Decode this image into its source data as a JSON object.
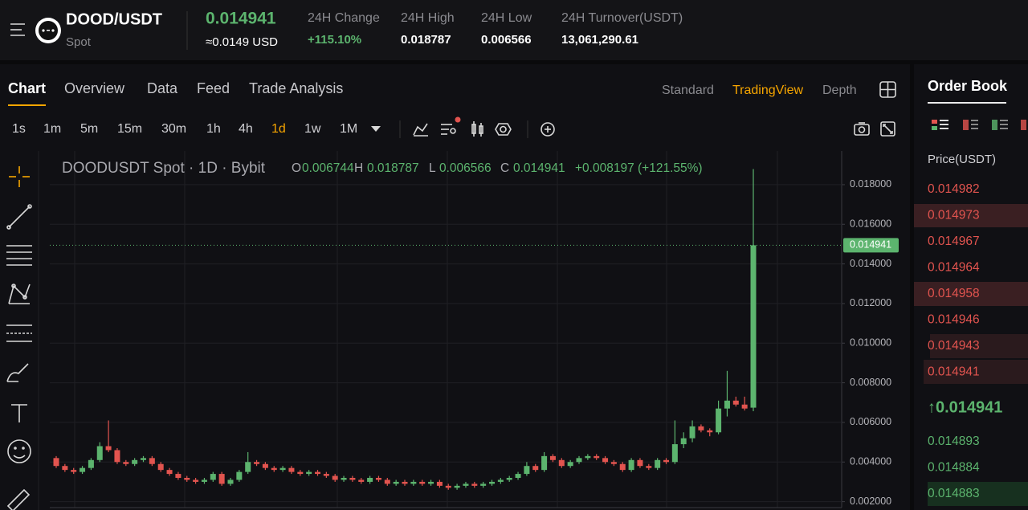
{
  "header": {
    "pair": "DOOD/USDT",
    "market": "Spot",
    "price": "0.014941",
    "price_usd": "≈0.0149 USD",
    "stats": [
      {
        "label": "24H Change",
        "value": "+115.10%"
      },
      {
        "label": "24H High",
        "value": "0.018787"
      },
      {
        "label": "24H Low",
        "value": "0.006566"
      },
      {
        "label": "24H Turnover(USDT)",
        "value": "13,061,290.61"
      }
    ]
  },
  "tabs": [
    "Chart",
    "Overview",
    "Data",
    "Feed",
    "Trade Analysis"
  ],
  "views": [
    "Standard",
    "TradingView",
    "Depth"
  ],
  "intervals": [
    "1s",
    "1m",
    "5m",
    "15m",
    "30m",
    "1h",
    "4h",
    "1d",
    "1w",
    "1M"
  ],
  "chart_data": {
    "type": "candlestick",
    "title": "DOODUSDT Spot · 1D · Bybit",
    "ohlc_labels": [
      "O",
      "H",
      "L",
      "C"
    ],
    "change": "+0.008197 (+121.55%)",
    "open": [
      0.0042,
      0.0038,
      0.0036,
      0.0035,
      0.0037,
      0.0041,
      0.0048,
      0.0046,
      0.004,
      0.0039,
      0.0041,
      0.0042,
      0.0039,
      0.0036,
      0.0034,
      0.0032,
      0.0031,
      0.003,
      0.0031,
      0.0034,
      0.0029,
      0.0031,
      0.0035,
      0.004,
      0.0039,
      0.0037,
      0.0036,
      0.0037,
      0.0035,
      0.0034,
      0.0035,
      0.0034,
      0.0033,
      0.0031,
      0.0032,
      0.0031,
      0.003,
      0.0032,
      0.0031,
      0.0029,
      0.003,
      0.0029,
      0.003,
      0.0029,
      0.003,
      0.0028,
      0.0027,
      0.0028,
      0.0029,
      0.0028,
      0.0029,
      0.003,
      0.0031,
      0.0032,
      0.0034,
      0.0038,
      0.0036,
      0.0043,
      0.0041,
      0.0038,
      0.004,
      0.0042,
      0.0043,
      0.0042,
      0.004,
      0.0039,
      0.0036,
      0.0041,
      0.0038,
      0.0037,
      0.0041,
      0.004,
      0.0049,
      0.0052,
      0.0058,
      0.0056,
      0.0055,
      0.0067,
      0.0071,
      0.0069,
      0.006744
    ],
    "high": [
      0.0043,
      0.0039,
      0.0037,
      0.0038,
      0.0042,
      0.005,
      0.0061,
      0.0047,
      0.0041,
      0.0042,
      0.0043,
      0.0043,
      0.004,
      0.0037,
      0.0035,
      0.0033,
      0.0032,
      0.0032,
      0.0035,
      0.0035,
      0.0032,
      0.0036,
      0.0045,
      0.0041,
      0.004,
      0.0038,
      0.0038,
      0.0038,
      0.0036,
      0.0036,
      0.0036,
      0.0035,
      0.0034,
      0.0033,
      0.0033,
      0.0032,
      0.0033,
      0.0033,
      0.0032,
      0.0031,
      0.0031,
      0.0031,
      0.0031,
      0.0031,
      0.0031,
      0.0029,
      0.0029,
      0.003,
      0.003,
      0.003,
      0.0031,
      0.0032,
      0.0033,
      0.0035,
      0.004,
      0.0039,
      0.0045,
      0.0044,
      0.0042,
      0.0041,
      0.0043,
      0.0044,
      0.0044,
      0.0043,
      0.0041,
      0.004,
      0.0042,
      0.0042,
      0.0039,
      0.0042,
      0.0042,
      0.0061,
      0.0055,
      0.0061,
      0.0059,
      0.0057,
      0.0071,
      0.0086,
      0.0073,
      0.0073,
      0.018787
    ],
    "low": [
      0.0037,
      0.0035,
      0.0034,
      0.0034,
      0.0036,
      0.004,
      0.0045,
      0.0039,
      0.0038,
      0.0038,
      0.004,
      0.0038,
      0.0035,
      0.0033,
      0.0031,
      0.003,
      0.0029,
      0.0029,
      0.003,
      0.0028,
      0.0028,
      0.003,
      0.0034,
      0.0038,
      0.0036,
      0.0035,
      0.0035,
      0.0034,
      0.0033,
      0.0033,
      0.0033,
      0.0032,
      0.003,
      0.003,
      0.003,
      0.0029,
      0.0029,
      0.003,
      0.0028,
      0.0028,
      0.0028,
      0.0028,
      0.0028,
      0.0028,
      0.0027,
      0.0026,
      0.0026,
      0.0027,
      0.0027,
      0.0027,
      0.0028,
      0.0029,
      0.003,
      0.0031,
      0.0033,
      0.0035,
      0.0035,
      0.004,
      0.0037,
      0.0037,
      0.0039,
      0.0041,
      0.0041,
      0.0039,
      0.0038,
      0.0035,
      0.0035,
      0.0037,
      0.0036,
      0.0036,
      0.0039,
      0.0039,
      0.0047,
      0.005,
      0.0055,
      0.0053,
      0.0054,
      0.0063,
      0.0068,
      0.0066,
      0.006566
    ],
    "close": [
      0.0038,
      0.0036,
      0.0035,
      0.0037,
      0.0041,
      0.0048,
      0.0046,
      0.004,
      0.0039,
      0.0041,
      0.0042,
      0.0039,
      0.0036,
      0.0034,
      0.0032,
      0.0031,
      0.003,
      0.0031,
      0.0034,
      0.0029,
      0.0031,
      0.0035,
      0.004,
      0.0039,
      0.0037,
      0.0036,
      0.0037,
      0.0035,
      0.0034,
      0.0035,
      0.0034,
      0.0033,
      0.0031,
      0.0032,
      0.0031,
      0.003,
      0.0032,
      0.0031,
      0.0029,
      0.003,
      0.0029,
      0.003,
      0.0029,
      0.003,
      0.0028,
      0.0027,
      0.0028,
      0.0029,
      0.0028,
      0.0029,
      0.003,
      0.0031,
      0.0032,
      0.0034,
      0.0038,
      0.0036,
      0.0043,
      0.0041,
      0.0038,
      0.004,
      0.0042,
      0.0043,
      0.0042,
      0.004,
      0.0039,
      0.0036,
      0.0041,
      0.0038,
      0.0037,
      0.0041,
      0.004,
      0.0049,
      0.0052,
      0.0058,
      0.0056,
      0.0055,
      0.0067,
      0.0071,
      0.0069,
      0.0067,
      0.014941
    ],
    "ylim": [
      0.0017,
      0.0197
    ],
    "yticks": [
      {
        "value": 0.002,
        "label": "0.002000"
      },
      {
        "value": 0.004,
        "label": "0.004000"
      },
      {
        "value": 0.006,
        "label": "0.006000"
      },
      {
        "value": 0.008,
        "label": "0.008000"
      },
      {
        "value": 0.01,
        "label": "0.010000"
      },
      {
        "value": 0.012,
        "label": "0.012000"
      },
      {
        "value": 0.014,
        "label": "0.014000"
      },
      {
        "value": 0.016,
        "label": "0.016000"
      },
      {
        "value": 0.018,
        "label": "0.018000"
      }
    ],
    "up_color": "#5cb46e",
    "down_color": "#e2544f",
    "grid": true
  },
  "order_book": {
    "title": "Order Book",
    "column": "Price(USDT)",
    "asks": [
      "0.014982",
      "0.014973",
      "0.014967",
      "0.014964",
      "0.014958",
      "0.014946",
      "0.014943",
      "0.014941"
    ],
    "last": "↑0.014941",
    "bids": [
      "0.014893",
      "0.014884",
      "0.014883"
    ]
  }
}
